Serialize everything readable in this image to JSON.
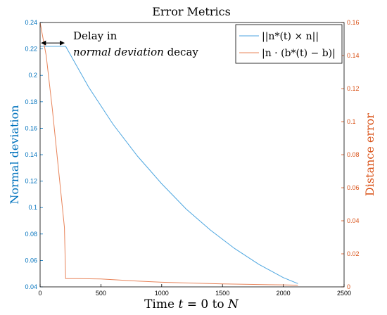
{
  "chart_data": {
    "type": "line",
    "title": "Error Metrics",
    "xlabel": "Time t = 0 to N",
    "ylabel_left": "Normal deviation",
    "ylabel_right": "Distance error",
    "xlim": [
      0,
      2500
    ],
    "ylim_left": [
      0.04,
      0.24
    ],
    "ylim_right": [
      0,
      0.16
    ],
    "x_ticks": [
      0,
      500,
      1000,
      1500,
      2000,
      2500
    ],
    "y_left_ticks": [
      0.04,
      0.06,
      0.08,
      0.1,
      0.12,
      0.14,
      0.16,
      0.18,
      0.2,
      0.22,
      0.24
    ],
    "y_right_ticks": [
      0,
      0.02,
      0.04,
      0.06,
      0.08,
      0.1,
      0.12,
      0.14,
      0.16
    ],
    "grid": false,
    "legend_position": "top-right",
    "colors": {
      "left": "#0072BD",
      "right": "#D95319",
      "left_line": "#4DA6E0",
      "right_line": "#E8845A"
    },
    "annotation": {
      "line1": "Delay in",
      "line2_italic": "normal deviation",
      "line2_rest": " decay",
      "arrow_from_x": 0,
      "arrow_to_x": 210,
      "arrow_y": 0.2245
    },
    "series": [
      {
        "name": "||n*(t) × n||",
        "axis": "left",
        "x": [
          0,
          50,
          100,
          150,
          200,
          210,
          400,
          600,
          800,
          1000,
          1200,
          1400,
          1600,
          1800,
          2000,
          2120
        ],
        "y": [
          0.222,
          0.222,
          0.222,
          0.222,
          0.222,
          0.222,
          0.191,
          0.163,
          0.139,
          0.118,
          0.099,
          0.083,
          0.069,
          0.057,
          0.047,
          0.0425
        ]
      },
      {
        "name": "|n · (b*(t) − b)|",
        "axis": "right",
        "x": [
          0,
          50,
          100,
          150,
          200,
          210,
          300,
          500,
          800,
          1000,
          1500,
          2000,
          2120
        ],
        "y": [
          0.16,
          0.14,
          0.108,
          0.072,
          0.036,
          0.005,
          0.005,
          0.0048,
          0.0035,
          0.0028,
          0.0018,
          0.0012,
          0.001
        ]
      }
    ]
  }
}
